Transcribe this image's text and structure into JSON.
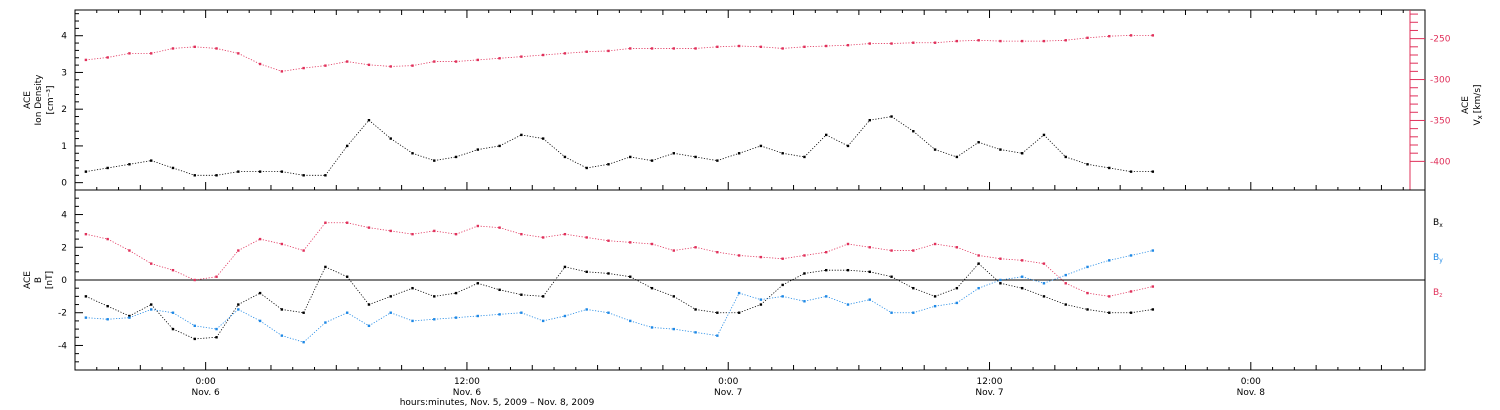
{
  "chart_data": [
    {
      "type": "scatter",
      "panel": "top",
      "ylabel_left": [
        "ACE",
        "Ion Density",
        "[cm⁻³]"
      ],
      "ylabel_right": [
        "ACE",
        "V",
        "x",
        "[km/s]"
      ],
      "ylim_left": [
        -0.2,
        4.7
      ],
      "ylim_right": [
        -435,
        -215
      ],
      "yticks_left": [
        "0",
        "1",
        "2",
        "3",
        "4"
      ],
      "yticks_right": [
        "-250",
        "-300",
        "-350",
        "-400"
      ],
      "colors": {
        "density": "#000000",
        "vx": "#e0305a"
      },
      "series": [
        {
          "key": "density",
          "axis": "left",
          "hours": [
            -5.5,
            -4.5,
            -3.5,
            -2.5,
            -1.5,
            -0.5,
            0.5,
            1.5,
            2.5,
            3.5,
            4.5,
            5.5,
            6.5,
            7.5,
            8.5,
            9.5,
            10.5,
            11.5,
            12.5,
            13.5,
            14.5,
            15.5,
            16.5,
            17.5,
            18.5,
            19.5,
            20.5,
            21.5,
            22.5,
            23.5,
            24.5,
            25.5,
            26.5,
            27.5,
            28.5,
            29.5,
            30.5,
            31.5,
            32.5,
            33.5,
            34.5,
            35.5,
            36.5,
            37.5,
            38.5,
            39.5,
            40.5,
            41.5,
            42.5,
            43.5
          ],
          "values": [
            0.3,
            0.4,
            0.5,
            0.6,
            0.4,
            0.2,
            0.2,
            0.3,
            0.3,
            0.3,
            0.2,
            0.2,
            1.0,
            1.7,
            1.2,
            0.8,
            0.6,
            0.7,
            0.9,
            1.0,
            1.3,
            1.2,
            0.7,
            0.4,
            0.5,
            0.7,
            0.6,
            0.8,
            0.7,
            0.6,
            0.8,
            1.0,
            0.8,
            0.7,
            1.3,
            1.0,
            1.7,
            1.8,
            1.4,
            0.9,
            0.7,
            1.1,
            0.9,
            0.8,
            1.3,
            0.7,
            0.5,
            0.4,
            0.3,
            0.3
          ]
        },
        {
          "key": "vx",
          "axis": "right",
          "hours": [
            -5.5,
            -4.5,
            -3.5,
            -2.5,
            -1.5,
            -0.5,
            0.5,
            1.5,
            2.5,
            3.5,
            4.5,
            5.5,
            6.5,
            7.5,
            8.5,
            9.5,
            10.5,
            11.5,
            12.5,
            13.5,
            14.5,
            15.5,
            16.5,
            17.5,
            18.5,
            19.5,
            20.5,
            21.5,
            22.5,
            23.5,
            24.5,
            25.5,
            26.5,
            27.5,
            28.5,
            29.5,
            30.5,
            31.5,
            32.5,
            33.5,
            34.5,
            35.5,
            36.5,
            37.5,
            38.5,
            39.5,
            40.5,
            41.5,
            42.5,
            43.5
          ],
          "values": [
            -276,
            -273,
            -268,
            -268,
            -262,
            -260,
            -262,
            -268,
            -281,
            -290,
            -286,
            -283,
            -278,
            -282,
            -284,
            -283,
            -278,
            -278,
            -276,
            -274,
            -272,
            -270,
            -268,
            -266,
            -265,
            -262,
            -262,
            -262,
            -262,
            -260,
            -259,
            -260,
            -262,
            -260,
            -259,
            -258,
            -256,
            -256,
            -255,
            -255,
            -253,
            -252,
            -253,
            -253,
            -253,
            -252,
            -249,
            -247,
            -246,
            -246
          ]
        }
      ]
    },
    {
      "type": "scatter",
      "panel": "bottom",
      "ylabel": [
        "ACE",
        "B",
        "[nT]"
      ],
      "ylim": [
        -5.5,
        5.5
      ],
      "yticks": [
        "4",
        "2",
        "0",
        "-2",
        "-4"
      ],
      "legend": [
        {
          "label": "B",
          "sub": "x",
          "color": "#000000"
        },
        {
          "label": "B",
          "sub": "y",
          "color": "#1e88e5"
        },
        {
          "label": "B",
          "sub": "z",
          "color": "#e0305a"
        }
      ],
      "series": [
        {
          "name": "Bx",
          "hours": [
            -5.5,
            -4.5,
            -3.5,
            -2.5,
            -1.5,
            -0.5,
            0.5,
            1.5,
            2.5,
            3.5,
            4.5,
            5.5,
            6.5,
            7.5,
            8.5,
            9.5,
            10.5,
            11.5,
            12.5,
            13.5,
            14.5,
            15.5,
            16.5,
            17.5,
            18.5,
            19.5,
            20.5,
            21.5,
            22.5,
            23.5,
            24.5,
            25.5,
            26.5,
            27.5,
            28.5,
            29.5,
            30.5,
            31.5,
            32.5,
            33.5,
            34.5,
            35.5,
            36.5,
            37.5,
            38.5,
            39.5,
            40.5,
            41.5,
            42.5,
            43.5
          ],
          "values": [
            -1.0,
            -1.6,
            -2.2,
            -1.5,
            -3.0,
            -3.6,
            -3.5,
            -1.5,
            -0.8,
            -1.8,
            -2.0,
            0.8,
            0.2,
            -1.5,
            -1.0,
            -0.5,
            -1.0,
            -0.8,
            -0.2,
            -0.6,
            -0.9,
            -1.0,
            0.8,
            0.5,
            0.4,
            0.2,
            -0.5,
            -1.0,
            -1.8,
            -2.0,
            -2.0,
            -1.5,
            -0.3,
            0.4,
            0.6,
            0.6,
            0.5,
            0.2,
            -0.5,
            -1.0,
            -0.5,
            1.0,
            -0.2,
            -0.5,
            -1.0,
            -1.5,
            -1.8,
            -2.0,
            -2.0,
            -1.8
          ]
        },
        {
          "name": "By",
          "hours": [
            -5.5,
            -4.5,
            -3.5,
            -2.5,
            -1.5,
            -0.5,
            0.5,
            1.5,
            2.5,
            3.5,
            4.5,
            5.5,
            6.5,
            7.5,
            8.5,
            9.5,
            10.5,
            11.5,
            12.5,
            13.5,
            14.5,
            15.5,
            16.5,
            17.5,
            18.5,
            19.5,
            20.5,
            21.5,
            22.5,
            23.5,
            24.5,
            25.5,
            26.5,
            27.5,
            28.5,
            29.5,
            30.5,
            31.5,
            32.5,
            33.5,
            34.5,
            35.5,
            36.5,
            37.5,
            38.5,
            39.5,
            40.5,
            41.5,
            42.5,
            43.5
          ],
          "values": [
            -2.3,
            -2.4,
            -2.3,
            -1.8,
            -2.0,
            -2.8,
            -3.0,
            -1.8,
            -2.5,
            -3.4,
            -3.8,
            -2.6,
            -2.0,
            -2.8,
            -2.0,
            -2.5,
            -2.4,
            -2.3,
            -2.2,
            -2.1,
            -2.0,
            -2.5,
            -2.2,
            -1.8,
            -2.0,
            -2.5,
            -2.9,
            -3.0,
            -3.2,
            -3.4,
            -0.8,
            -1.2,
            -1.0,
            -1.3,
            -1.0,
            -1.5,
            -1.2,
            -2.0,
            -2.0,
            -1.6,
            -1.4,
            -0.5,
            0.0,
            0.2,
            -0.2,
            0.3,
            0.8,
            1.2,
            1.5,
            1.8
          ]
        },
        {
          "name": "Bz",
          "hours": [
            -5.5,
            -4.5,
            -3.5,
            -2.5,
            -1.5,
            -0.5,
            0.5,
            1.5,
            2.5,
            3.5,
            4.5,
            5.5,
            6.5,
            7.5,
            8.5,
            9.5,
            10.5,
            11.5,
            12.5,
            13.5,
            14.5,
            15.5,
            16.5,
            17.5,
            18.5,
            19.5,
            20.5,
            21.5,
            22.5,
            23.5,
            24.5,
            25.5,
            26.5,
            27.5,
            28.5,
            29.5,
            30.5,
            31.5,
            32.5,
            33.5,
            34.5,
            35.5,
            36.5,
            37.5,
            38.5,
            39.5,
            40.5,
            41.5,
            42.5,
            43.5
          ],
          "values": [
            2.8,
            2.5,
            1.8,
            1.0,
            0.6,
            0.0,
            0.2,
            1.8,
            2.5,
            2.2,
            1.8,
            3.5,
            3.5,
            3.2,
            3.0,
            2.8,
            3.0,
            2.8,
            3.3,
            3.2,
            2.8,
            2.6,
            2.8,
            2.6,
            2.4,
            2.3,
            2.2,
            1.8,
            2.0,
            1.7,
            1.5,
            1.4,
            1.3,
            1.5,
            1.7,
            2.2,
            2.0,
            1.8,
            1.8,
            2.2,
            2.0,
            1.5,
            1.3,
            1.2,
            1.0,
            -0.2,
            -0.8,
            -1.0,
            -0.7,
            -0.4
          ]
        }
      ]
    }
  ],
  "x_axis": {
    "hour_range": [
      -6,
      56
    ],
    "ticks": [
      {
        "hour": 0,
        "time": "0:00",
        "date": "Nov. 6"
      },
      {
        "hour": 12,
        "time": "12:00",
        "date": "Nov. 6"
      },
      {
        "hour": 24,
        "time": "0:00",
        "date": "Nov. 7"
      },
      {
        "hour": 36,
        "time": "12:00",
        "date": "Nov. 7"
      },
      {
        "hour": 48,
        "time": "0:00",
        "date": "Nov. 8"
      }
    ],
    "title": "hours:minutes, Nov. 5, 2009 – Nov. 8, 2009"
  }
}
